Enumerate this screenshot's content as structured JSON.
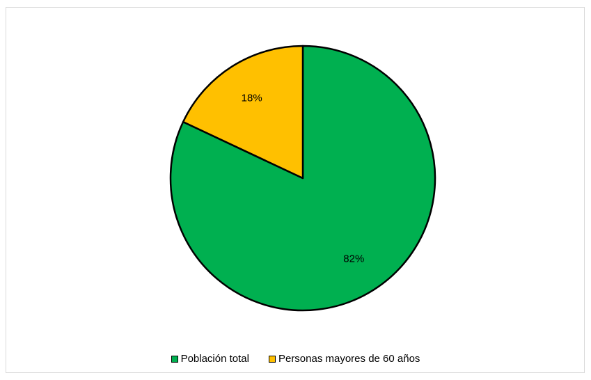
{
  "chart_data": {
    "type": "pie",
    "categories": [
      "Población total",
      "Personas mayores de 60 años"
    ],
    "values": [
      82,
      18
    ],
    "labels": [
      "82%",
      "18%"
    ],
    "colors": [
      "#00b050",
      "#ffc000"
    ],
    "start_angle_deg": 0,
    "direction": "clockwise",
    "legend_position": "bottom",
    "title": ""
  }
}
